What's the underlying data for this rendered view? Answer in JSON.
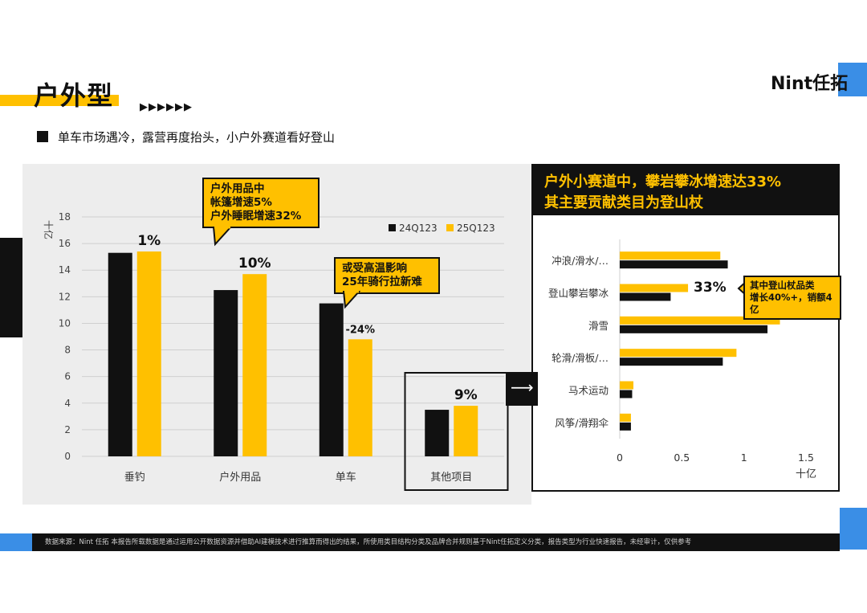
{
  "header": {
    "title": "户外型",
    "arrows": "▶▶▶▶▶▶",
    "subtitle": "单车市场遇冷，露营再度抬头，小户外赛道看好登山",
    "logo": "Nint任拓"
  },
  "left_chart": {
    "callout_1": [
      "户外用品中",
      "帐篷增速5%",
      "户外睡眠增速32%"
    ],
    "callout_2": [
      "或受高温影响",
      "25年骑行拉新难"
    ]
  },
  "right_card": {
    "head_line_1": "户外小赛道中，攀岩攀冰增速达33%",
    "head_line_2": "其主要贡献类目为登山杖",
    "callout": [
      "其中登山杖品类",
      "增长40%+，销额4亿"
    ],
    "highlight_label": "33%"
  },
  "footer": {
    "text": "数据来源：Nint 任拓     本报告所载数据是通过运用公开数据资源并借助AI建模技术进行推算而得出的结果，所使用类目结构分类及品牌合并规则基于Nint任拓定义分类，报告类型为行业快速报告，未经审计，仅供参考"
  },
  "colors": {
    "accent": "#ffc000",
    "dark": "#111111",
    "blue": "#3a8ee6"
  },
  "chart_data": [
    {
      "type": "bar",
      "ylabel": "十亿",
      "ylim": [
        0,
        18
      ],
      "yticks": [
        0,
        2,
        4,
        6,
        8,
        10,
        12,
        14,
        16,
        18
      ],
      "categories": [
        "垂钓",
        "户外用品",
        "单车",
        "其他项目"
      ],
      "series": [
        {
          "name": "24Q123",
          "color": "#111111",
          "values": [
            15.3,
            12.5,
            11.5,
            3.5
          ]
        },
        {
          "name": "25Q123",
          "color": "#ffc000",
          "values": [
            15.4,
            13.7,
            8.8,
            3.8
          ]
        }
      ],
      "growth_labels": [
        "1%",
        "10%",
        "-24%",
        "9%"
      ],
      "legend": "top-right",
      "grid": true
    },
    {
      "type": "bar",
      "orientation": "horizontal",
      "xlabel": "十亿",
      "xlim": [
        0,
        1.5
      ],
      "xticks": [
        "0",
        "0.5",
        "1",
        "1.5"
      ],
      "categories": [
        "冲浪/滑水/…",
        "登山攀岩攀冰",
        "滑雪",
        "轮滑/滑板/…",
        "马术运动",
        "风筝/滑翔伞"
      ],
      "series": [
        {
          "name": "24Q123",
          "color": "#111111",
          "values": [
            0.87,
            0.41,
            1.19,
            0.83,
            0.1,
            0.09
          ]
        },
        {
          "name": "25Q123",
          "color": "#ffc000",
          "values": [
            0.81,
            0.55,
            1.29,
            0.94,
            0.11,
            0.09
          ]
        }
      ]
    }
  ]
}
